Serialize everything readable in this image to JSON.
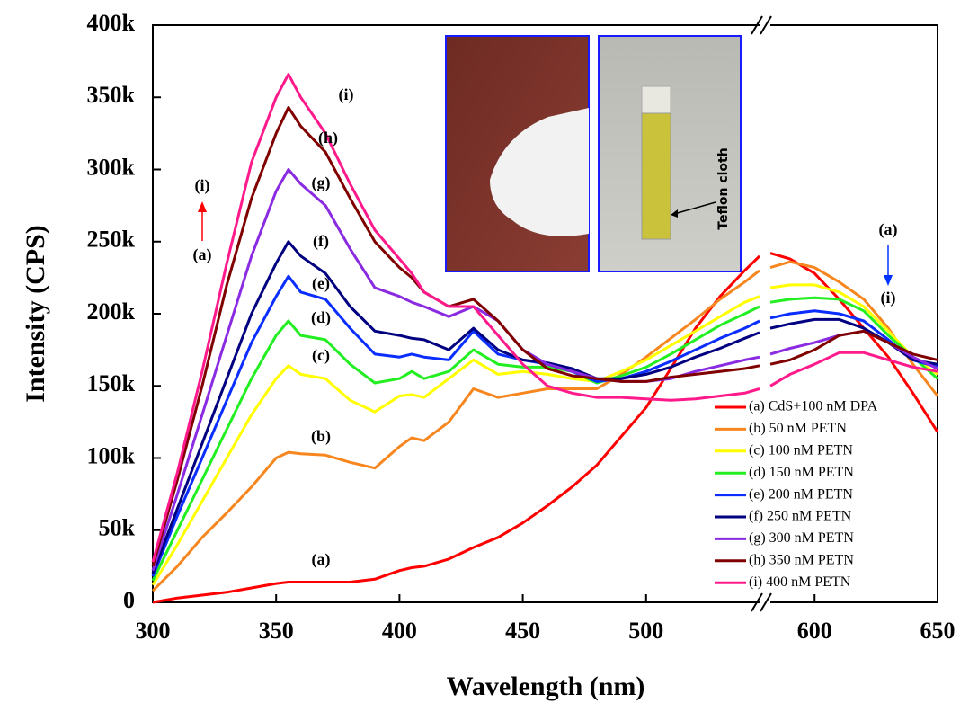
{
  "chart_data": {
    "type": "line",
    "x_label": "Wavelength (nm)",
    "y_label": "Intensity (CPS)",
    "xlim": [
      300,
      650
    ],
    "x_break": [
      546,
      582
    ],
    "xticks": [
      300,
      350,
      400,
      450,
      500,
      600,
      650
    ],
    "ylim": [
      0,
      400000
    ],
    "yticks": [
      0,
      {
        "value": 50000,
        "label": "50k"
      },
      {
        "value": 100000,
        "label": "100k"
      },
      {
        "value": 150000,
        "label": "150k"
      },
      {
        "value": 200000,
        "label": "200k"
      },
      {
        "value": 250000,
        "label": "250k"
      },
      {
        "value": 300000,
        "label": "300k"
      },
      {
        "value": 350000,
        "label": "350k"
      },
      {
        "value": 400000,
        "label": "400k"
      }
    ],
    "x": [
      300,
      310,
      320,
      330,
      340,
      350,
      355,
      360,
      370,
      380,
      390,
      400,
      405,
      410,
      420,
      430,
      440,
      450,
      460,
      470,
      480,
      490,
      500,
      510,
      520,
      530,
      540,
      546,
      582,
      590,
      600,
      610,
      620,
      630,
      640,
      650
    ],
    "series": [
      {
        "name": "(a) CdS+100 nM DPA",
        "color": "#ff0000",
        "values": [
          0,
          3000,
          5000,
          7000,
          10000,
          13000,
          14000,
          14000,
          14000,
          14000,
          16000,
          22000,
          24000,
          25000,
          30000,
          38000,
          45000,
          55000,
          67000,
          80000,
          95000,
          115000,
          135000,
          162000,
          190000,
          212000,
          230000,
          240000,
          242000,
          238000,
          228000,
          210000,
          190000,
          170000,
          145000,
          118000
        ]
      },
      {
        "name": "(b) 50 nM PETN",
        "color": "#f7861e",
        "values": [
          8000,
          25000,
          45000,
          62000,
          80000,
          100000,
          104000,
          103000,
          102000,
          97000,
          93000,
          108000,
          114000,
          112000,
          125000,
          148000,
          142000,
          145000,
          148000,
          148000,
          148000,
          158000,
          170000,
          183000,
          196000,
          210000,
          222000,
          230000,
          232000,
          236000,
          232000,
          222000,
          210000,
          190000,
          165000,
          143000
        ]
      },
      {
        "name": "(c) 100 nM PETN",
        "color": "#ffff00",
        "values": [
          12000,
          40000,
          70000,
          100000,
          130000,
          155000,
          164000,
          158000,
          155000,
          140000,
          132000,
          143000,
          144000,
          142000,
          155000,
          168000,
          158000,
          160000,
          158000,
          155000,
          153000,
          160000,
          168000,
          178000,
          188000,
          198000,
          208000,
          212000,
          218000,
          220000,
          220000,
          215000,
          205000,
          188000,
          170000,
          158000
        ]
      },
      {
        "name": "(d) 150 nM PETN",
        "color": "#22ee22",
        "values": [
          15000,
          50000,
          85000,
          120000,
          155000,
          185000,
          195000,
          185000,
          182000,
          165000,
          152000,
          155000,
          160000,
          155000,
          160000,
          175000,
          165000,
          163000,
          163000,
          160000,
          152000,
          157000,
          163000,
          172000,
          182000,
          192000,
          200000,
          205000,
          208000,
          210000,
          211000,
          210000,
          202000,
          185000,
          170000,
          155000
        ]
      },
      {
        "name": "(e) 200 nM PETN",
        "color": "#0a2eff",
        "values": [
          18000,
          60000,
          100000,
          140000,
          180000,
          212000,
          226000,
          215000,
          210000,
          190000,
          172000,
          170000,
          172000,
          170000,
          168000,
          188000,
          172000,
          168000,
          165000,
          160000,
          153000,
          155000,
          160000,
          167000,
          175000,
          183000,
          190000,
          195000,
          197000,
          200000,
          202000,
          200000,
          195000,
          182000,
          168000,
          163000
        ]
      },
      {
        "name": "(f) 250 nM PETN",
        "color": "#000080",
        "values": [
          20000,
          65000,
          110000,
          155000,
          200000,
          235000,
          250000,
          240000,
          228000,
          205000,
          188000,
          185000,
          183000,
          182000,
          175000,
          190000,
          175000,
          168000,
          166000,
          162000,
          155000,
          155000,
          158000,
          163000,
          170000,
          176000,
          183000,
          187000,
          190000,
          193000,
          196000,
          196000,
          190000,
          180000,
          168000,
          165000
        ]
      },
      {
        "name": "(g) 300 nM PETN",
        "color": "#8a2be2",
        "values": [
          22000,
          75000,
          130000,
          185000,
          240000,
          285000,
          300000,
          290000,
          275000,
          245000,
          218000,
          212000,
          208000,
          205000,
          198000,
          205000,
          195000,
          175000,
          165000,
          160000,
          155000,
          153000,
          153000,
          155000,
          160000,
          164000,
          168000,
          170000,
          172000,
          176000,
          180000,
          185000,
          188000,
          180000,
          170000,
          162000
        ]
      },
      {
        "name": "(h) 350 nM PETN",
        "color": "#800000",
        "values": [
          25000,
          85000,
          150000,
          220000,
          280000,
          325000,
          343000,
          330000,
          312000,
          280000,
          250000,
          232000,
          225000,
          215000,
          205000,
          210000,
          195000,
          175000,
          162000,
          157000,
          155000,
          153000,
          153000,
          156000,
          158000,
          160000,
          162000,
          164000,
          165000,
          168000,
          175000,
          185000,
          188000,
          180000,
          172000,
          168000
        ]
      },
      {
        "name": "(i) 400 nM PETN",
        "color": "#ff1a8c",
        "values": [
          28000,
          90000,
          160000,
          235000,
          305000,
          350000,
          366000,
          350000,
          325000,
          290000,
          258000,
          238000,
          228000,
          215000,
          205000,
          205000,
          185000,
          165000,
          150000,
          145000,
          142000,
          142000,
          141000,
          140000,
          141000,
          143000,
          145000,
          148000,
          150000,
          158000,
          165000,
          173000,
          173000,
          168000,
          163000,
          160000
        ]
      }
    ],
    "annotations": [
      "(i)",
      "(h)",
      "(g)",
      "(f)",
      "(e)",
      "(d)",
      "(c)",
      "(b)",
      "(a)",
      "(i)",
      "(a)",
      "(a)",
      "(i)"
    ],
    "inset_label": "Teflon cloth"
  }
}
